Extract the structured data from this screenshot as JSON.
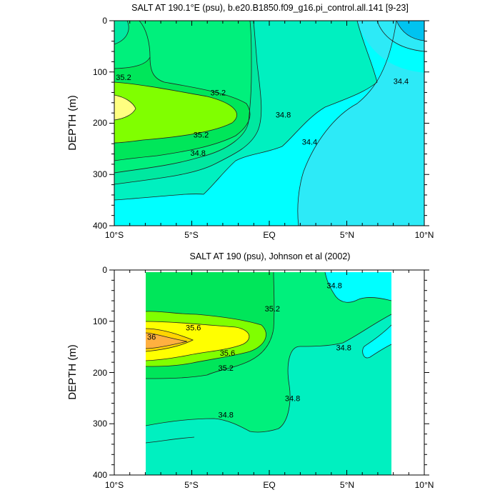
{
  "chart_data": [
    {
      "type": "contour",
      "title": "SALT AT 190.1°E (psu), b.e20.B1850.f09_g16.pi_control.all.141 [9-23]",
      "xlabel": "",
      "ylabel": "DEPTH (m)",
      "xlim": [
        -10,
        10
      ],
      "ylim": [
        400,
        0
      ],
      "x_ticks": [
        {
          "value": -10,
          "label": "10°S"
        },
        {
          "value": -5,
          "label": "5°S"
        },
        {
          "value": 0,
          "label": "EQ"
        },
        {
          "value": 5,
          "label": "5°N"
        },
        {
          "value": 10,
          "label": "10°N"
        }
      ],
      "y_ticks": [
        0,
        100,
        200,
        300,
        400
      ],
      "levels": [
        34.4,
        34.8,
        35.2
      ],
      "contour_labels": [
        {
          "text": "35.2",
          "x": -9.4,
          "y": 110
        },
        {
          "text": "35.2",
          "x": -3.3,
          "y": 140
        },
        {
          "text": "35.2",
          "x": -4.4,
          "y": 222
        },
        {
          "text": "34.8",
          "x": -4.6,
          "y": 258
        },
        {
          "text": "34.8",
          "x": 0.9,
          "y": 183
        },
        {
          "text": "34.4",
          "x": 2.6,
          "y": 236
        },
        {
          "text": "34.4",
          "x": 8.5,
          "y": 118
        }
      ]
    },
    {
      "type": "contour",
      "title": "SALT AT 190 (psu), Johnson et al (2002)",
      "xlabel": "",
      "ylabel": "DEPTH (m)",
      "xlim": [
        -10,
        10
      ],
      "ylim": [
        400,
        0
      ],
      "data_range_x": [
        -8,
        8
      ],
      "x_ticks": [
        {
          "value": -10,
          "label": "10°S"
        },
        {
          "value": -5,
          "label": "5°S"
        },
        {
          "value": 0,
          "label": "EQ"
        },
        {
          "value": 5,
          "label": "5°N"
        },
        {
          "value": 10,
          "label": "10°N"
        }
      ],
      "y_ticks": [
        0,
        100,
        200,
        300,
        400
      ],
      "levels": [
        34.8,
        35.2,
        35.6,
        36
      ],
      "contour_labels": [
        {
          "text": "34.8",
          "x": 4.2,
          "y": 30
        },
        {
          "text": "35.2",
          "x": 0.2,
          "y": 75
        },
        {
          "text": "35.6",
          "x": -4.9,
          "y": 112
        },
        {
          "text": "36",
          "x": -7.6,
          "y": 130
        },
        {
          "text": "35.6",
          "x": -2.7,
          "y": 162
        },
        {
          "text": "35.2",
          "x": -2.8,
          "y": 191
        },
        {
          "text": "34.8",
          "x": 4.8,
          "y": 151
        },
        {
          "text": "34.8",
          "x": 1.5,
          "y": 250
        },
        {
          "text": "34.8",
          "x": -2.8,
          "y": 282
        }
      ]
    }
  ]
}
